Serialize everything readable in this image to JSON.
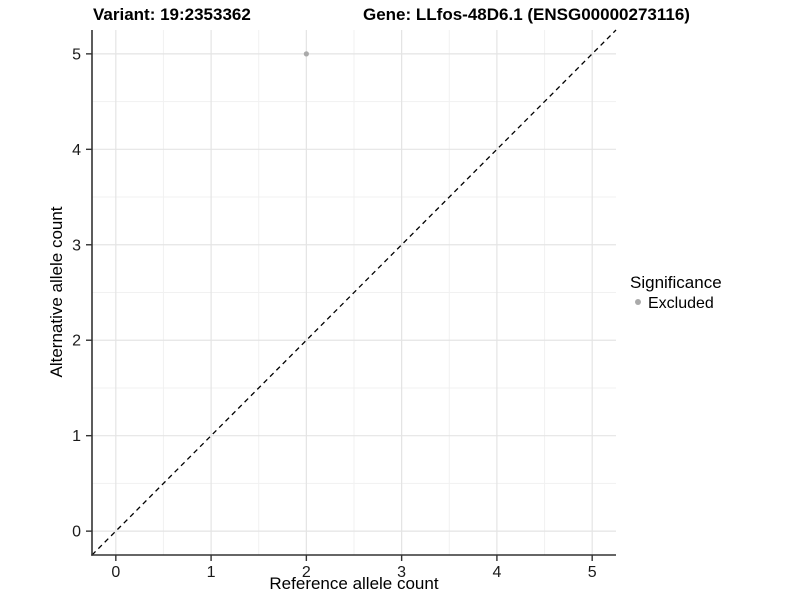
{
  "chart_data": {
    "type": "scatter",
    "titles": {
      "left": "Variant: 19:2353362",
      "right": "Gene: LLfos-48D6.1 (ENSG00000273116)"
    },
    "xlabel": "Reference allele count",
    "ylabel": "Alternative allele count",
    "xlim": [
      -0.25,
      5.25
    ],
    "ylim": [
      -0.25,
      5.25
    ],
    "x_ticks": [
      0,
      1,
      2,
      3,
      4,
      5
    ],
    "y_ticks": [
      0,
      1,
      2,
      3,
      4,
      5
    ],
    "x_minor_ticks": [
      0.5,
      1.5,
      2.5,
      3.5,
      4.5
    ],
    "y_minor_ticks": [
      0.5,
      1.5,
      2.5,
      3.5,
      4.5
    ],
    "grid": "major and minor, light gray on white",
    "reference_line": {
      "kind": "identity",
      "style": "dashed",
      "color": "#000000"
    },
    "series": [
      {
        "name": "Excluded",
        "color": "#aaaaaa",
        "marker": "circle",
        "points": [
          {
            "x": 2,
            "y": 5
          }
        ]
      }
    ],
    "legend": {
      "title": "Significance",
      "position": "right",
      "entries": [
        {
          "label": "Excluded",
          "color": "#aaaaaa",
          "marker": "circle"
        }
      ]
    }
  },
  "colors": {
    "background": "#ffffff",
    "grid_major": "#e4e4e4",
    "grid_minor": "#f1f1f1",
    "axis_line": "#333333",
    "title_text": "#000000",
    "point": "#aaaaaa"
  }
}
